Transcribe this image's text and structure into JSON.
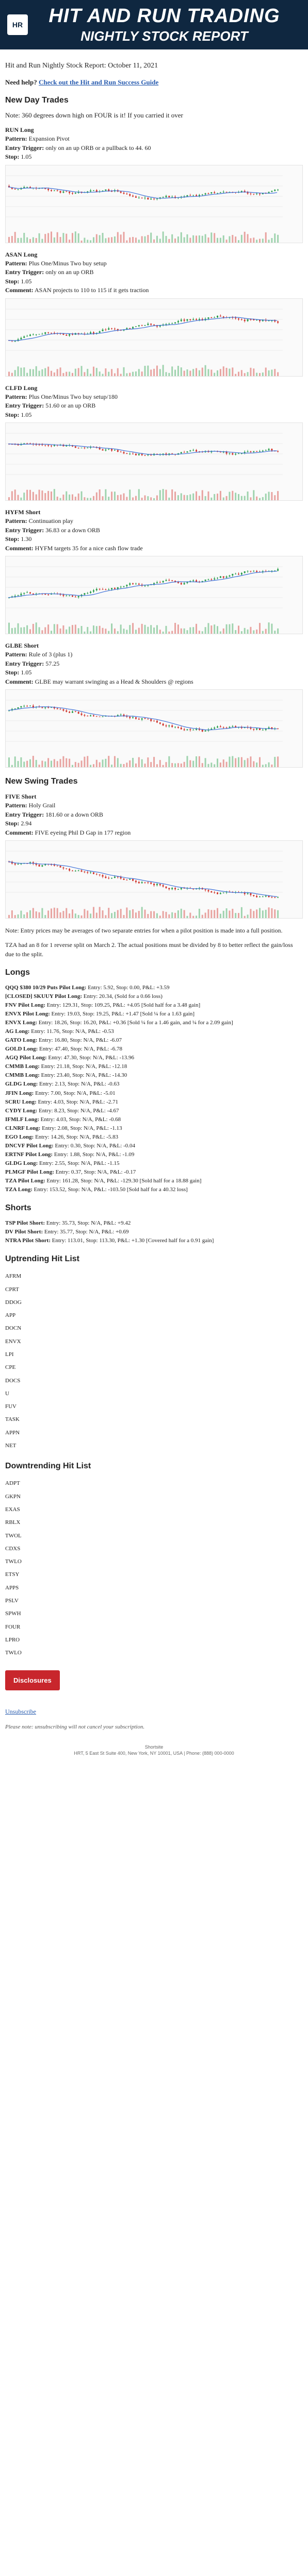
{
  "banner": {
    "logo": "HR",
    "title": "HIT AND RUN TRADING",
    "subtitle": "NIGHTLY STOCK REPORT"
  },
  "report_title": "Hit and Run Nightly Stock Report: October 11, 2021",
  "help": {
    "prefix": "Need help?",
    "link": "Check out the Hit and Run Success Guide"
  },
  "sections": {
    "new_day": "New Day Trades",
    "new_swing": "New Swing Trades",
    "longs": "Longs",
    "shorts": "Shorts",
    "uptrending": "Uptrending Hit List",
    "downtrending": "Downtrending Hit List"
  },
  "intro_note": "Note: 360 degrees down high on FOUR is it! If you carried it over",
  "trades": [
    {
      "title": "RUN Long",
      "lines": [
        {
          "label": "Pattern:",
          "value": "Expansion Pivot"
        },
        {
          "label": "Entry Trigger:",
          "value": "only on an up ORB or a pullback to 44. 60"
        },
        {
          "label": "Stop:",
          "value": "1.05"
        }
      ]
    },
    {
      "title": "ASAN Long",
      "lines": [
        {
          "label": "Pattern:",
          "value": "Plus One/Minus Two buy setup"
        },
        {
          "label": "Entry Trigger:",
          "value": "only on an up ORB"
        },
        {
          "label": "Stop:",
          "value": "1.05"
        },
        {
          "label": "Comment:",
          "value": "ASAN projects to 110 to 115 if it gets traction"
        }
      ]
    },
    {
      "title": "CLFD Long",
      "lines": [
        {
          "label": "Pattern:",
          "value": "Plus One/Minus Two buy setup/180"
        },
        {
          "label": "Entry Trigger:",
          "value": "51.60 or an up ORB"
        },
        {
          "label": "Stop:",
          "value": "1.05"
        }
      ]
    },
    {
      "title": "HYFM Short",
      "lines": [
        {
          "label": "Pattern:",
          "value": "Continuation play"
        },
        {
          "label": "Entry Trigger:",
          "value": "36.83 or a down ORB"
        },
        {
          "label": "Stop:",
          "value": "1.30"
        },
        {
          "label": "Comment:",
          "value": "HYFM targets 35 for a nice cash flow trade"
        }
      ]
    },
    {
      "title": "GLBE Short",
      "lines": [
        {
          "label": "Pattern:",
          "value": "Rule of 3 (plus 1)"
        },
        {
          "label": "Entry Trigger:",
          "value": "57.25"
        },
        {
          "label": "Stop:",
          "value": "1.05"
        },
        {
          "label": "Comment:",
          "value": "GLBE may warrant swinging as a Head & Shoulders @ regions"
        }
      ]
    }
  ],
  "swing_trades": [
    {
      "title": "FIVE Short",
      "lines": [
        {
          "label": "Pattern:",
          "value": "Holy Grail"
        },
        {
          "label": "Entry Trigger:",
          "value": "181.60 or a down ORB"
        },
        {
          "label": "Stop:",
          "value": "2.94"
        },
        {
          "label": "Comment:",
          "value": "FIVE eyeing Phil D Gap in 177 region"
        }
      ]
    }
  ],
  "swing_note": "Note: Entry prices may be averages of two separate entries for when a pilot position is made into a full position.",
  "tza_note": "TZA had an 8 for 1 reverse split on March 2. The actual positions must be divided by 8 to better reflect the gain/loss due to the split.",
  "longs": [
    {
      "name": "QQQ $380 10/29 Puts Pilot Long:",
      "text": "Entry: 5.92, Stop: 0.00, P&L: +3.59"
    },
    {
      "name": "[CLOSED] SKUUY Pilot Long:",
      "text": "Entry: 20.34, (Sold for a 0.66 loss)"
    },
    {
      "name": "FNV Pilot Long:",
      "text": "Entry: 129.31, Stop: 109.25, P&L: +4.05 [Sold half for a 3.48 gain]"
    },
    {
      "name": "ENVX Pilot Long:",
      "text": "Entry: 19.03, Stop: 19.25, P&L: +1.47 [Sold ¼ for a 1.63 gain]"
    },
    {
      "name": "ENVX Long:",
      "text": "Entry: 18.26, Stop: 16.20, P&L: +0.36 [Sold ¼ for a 1.46 gain, and ¼ for a 2.09 gain]"
    },
    {
      "name": "AG Long:",
      "text": "Entry: 11.76, Stop: N/A, P&L: -0.53"
    },
    {
      "name": "GATO Long:",
      "text": "Entry: 16.80, Stop: N/A, P&L: -6.07"
    },
    {
      "name": "GOLD Long:",
      "text": "Entry: 47.40, Stop: N/A, P&L: -6.78"
    },
    {
      "name": "AGQ Pilot Long:",
      "text": "Entry: 47.30, Stop: N/A, P&L: -13.96"
    },
    {
      "name": "CMMB Long:",
      "text": "Entry: 21.18, Stop: N/A, P&L: -12.18"
    },
    {
      "name": "CMMB Long:",
      "text": "Entry: 23.40, Stop: N/A, P&L: -14.30"
    },
    {
      "name": "GLDG Long:",
      "text": "Entry: 2.13, Stop: N/A, P&L: -0.63"
    },
    {
      "name": "JFIN Long:",
      "text": "Entry: 7.00, Stop: N/A, P&L: -5.01"
    },
    {
      "name": "SCRU Long:",
      "text": "Entry: 4.03, Stop: N/A, P&L: -2.71"
    },
    {
      "name": "CYDY Long:",
      "text": "Entry: 8.23, Stop: N/A, P&L: -4.67"
    },
    {
      "name": "IFMLF Long:",
      "text": "Entry: 4.03, Stop: N/A, P&L: -0.68"
    },
    {
      "name": "CLNRF Long:",
      "text": "Entry: 2.08, Stop: N/A, P&L: -1.13"
    },
    {
      "name": "EGO Long:",
      "text": "Entry: 14.26, Stop: N/A, P&L: -5.83"
    },
    {
      "name": "DNCVF Pilot Long:",
      "text": "Entry: 0.30, Stop: N/A, P&L: -0.04"
    },
    {
      "name": "ERTNF Pilot Long:",
      "text": "Entry: 1.88, Stop: N/A, P&L: -1.09"
    },
    {
      "name": "GLDG Long:",
      "text": "Entry: 2.55, Stop: N/A, P&L: -1.15"
    },
    {
      "name": "PLMGF Pilot Long:",
      "text": "Entry: 0.37, Stop: N/A, P&L: -0.17"
    },
    {
      "name": "TZA Pilot Long:",
      "text": "Entry: 161.28, Stop: N/A, P&L: -129.30 [Sold half for a 18.88 gain]"
    },
    {
      "name": "TZA Long:",
      "text": "Entry: 153.52, Stop: N/A, P&L: -103.50 [Sold half for a 40.32 loss]"
    }
  ],
  "shorts": [
    {
      "name": "TSP Pilot Short:",
      "text": "Entry: 35.73, Stop: N/A, P&L: +9.42"
    },
    {
      "name": "DV Pilot Short:",
      "text": "Entry: 35.77, Stop: N/A, P&L: +0.69"
    },
    {
      "name": "NTRA Pilot Short:",
      "text": "Entry: 113.01, Stop: 113.30, P&L: +1.30 [Covered half for a 0.91 gain]"
    }
  ],
  "uptrending": [
    "AFRM",
    "CPRT",
    "DDOG",
    "APP",
    "DOCN",
    "ENVX",
    "LPI",
    "CPE",
    "DOCS",
    "U",
    "FUV",
    "TASK",
    "APPN",
    "NET"
  ],
  "downtrending": [
    "ADPT",
    "GKPN",
    "EXAS",
    "RBLX",
    "TWOL",
    "CDXS",
    "TWLO",
    "ETSY",
    "APPS",
    "PSLV",
    "SPWH",
    "FOUR",
    "LPRO",
    "TWLO"
  ],
  "disclosures_label": "Disclosures",
  "unsubscribe_label": "Unsubscribe",
  "footnote": "Please note: unsubscribing will not cancel your subscription.",
  "footer_brand": "Shortsite",
  "footer_address": "HRT, 5 East St Suite 400, New York, NY 10001, USA | Phone: (888) 000-0000",
  "colors": {
    "banner_bg": "#0f2740",
    "link": "#2a5db0",
    "disclosures": "#c8262c",
    "up": "#2a9d4b",
    "down": "#d0342c"
  }
}
